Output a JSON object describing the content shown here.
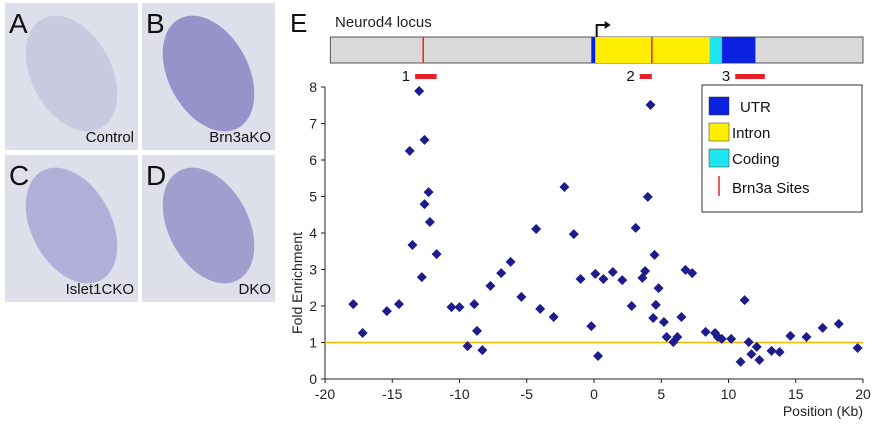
{
  "panels": [
    {
      "letter": "A",
      "caption": "Control"
    },
    {
      "letter": "B",
      "caption": "Brn3aKO"
    },
    {
      "letter": "C",
      "caption": "Islet1CKO"
    },
    {
      "letter": "D",
      "caption": "DKO"
    }
  ],
  "panel_letter": "E",
  "locus": {
    "title": "Neurod4 locus",
    "span": [
      -19.6,
      20
    ],
    "tss": 0.2,
    "features": [
      {
        "label": "UTR",
        "color": "#0a22e0",
        "regions": [
          [
            -0.2,
            0.1
          ],
          [
            9.5,
            12.0
          ]
        ]
      },
      {
        "label": "Intron",
        "color": "#ffee00",
        "regions": [
          [
            0.1,
            8.6
          ]
        ]
      },
      {
        "label": "Coding",
        "color": "#1ee6ee",
        "regions": [
          [
            8.6,
            9.5
          ]
        ]
      }
    ],
    "sites": {
      "label": "Brn3a Sites",
      "color": "#e8202a",
      "positions": [
        -12.7,
        4.3
      ]
    },
    "regions": [
      {
        "label": "1",
        "start": -13.3,
        "end": -11.7
      },
      {
        "label": "2",
        "start": 3.4,
        "end": 4.3
      },
      {
        "label": "3",
        "start": 10.5,
        "end": 12.7
      }
    ]
  },
  "chart_data": {
    "type": "scatter",
    "xlabel": "Position (Kb)",
    "ylabel": "Fold Enrichment",
    "color": "#1c1c8c",
    "x": [
      -17.9,
      -17.2,
      -15.4,
      -14.5,
      -13.7,
      -13.5,
      -13.0,
      -12.8,
      -12.6,
      -12.6,
      -12.3,
      -12.2,
      -11.7,
      -10.6,
      -10.0,
      -9.4,
      -8.9,
      -8.7,
      -8.3,
      -7.7,
      -6.9,
      -6.2,
      -5.4,
      -4.3,
      -4.0,
      -3.0,
      -2.2,
      -1.5,
      -1.0,
      -0.2,
      0.1,
      0.3,
      0.7,
      1.4,
      2.1,
      2.8,
      3.1,
      3.6,
      3.8,
      4.0,
      4.2,
      4.4,
      4.5,
      4.6,
      4.8,
      5.2,
      5.4,
      5.9,
      6.2,
      6.5,
      6.8,
      7.3,
      8.3,
      9.0,
      9.2,
      9.5,
      10.2,
      10.9,
      11.2,
      11.5,
      11.7,
      12.1,
      12.3,
      13.2,
      13.8,
      14.6,
      15.8,
      17.0,
      18.2,
      19.6
    ],
    "values": [
      2.05,
      1.26,
      1.86,
      2.05,
      6.25,
      3.67,
      7.89,
      2.79,
      4.79,
      6.55,
      5.12,
      4.3,
      3.42,
      1.97,
      1.97,
      0.9,
      2.05,
      1.32,
      0.79,
      2.55,
      2.9,
      3.21,
      2.25,
      4.11,
      1.92,
      1.7,
      5.26,
      3.97,
      2.74,
      1.45,
      2.88,
      0.63,
      2.74,
      2.93,
      2.71,
      2.0,
      4.14,
      2.77,
      2.96,
      4.99,
      7.51,
      1.67,
      3.4,
      2.03,
      2.49,
      1.56,
      1.15,
      1.01,
      1.15,
      1.7,
      2.99,
      2.9,
      1.29,
      1.26,
      1.15,
      1.1,
      1.1,
      0.47,
      2.16,
      1.01,
      0.68,
      0.88,
      0.52,
      0.77,
      0.74,
      1.18,
      1.15,
      1.4,
      1.51,
      0.85
    ],
    "xlim": [
      -20,
      20
    ],
    "xticks": [
      -20,
      -15,
      -10,
      -5,
      0,
      5,
      10,
      15,
      20
    ],
    "ylim": [
      0,
      8
    ],
    "yticks": [
      0,
      1,
      2,
      3,
      4,
      5,
      6,
      7,
      8
    ],
    "reference_line": {
      "value": 1,
      "color": "#f5b800"
    }
  }
}
